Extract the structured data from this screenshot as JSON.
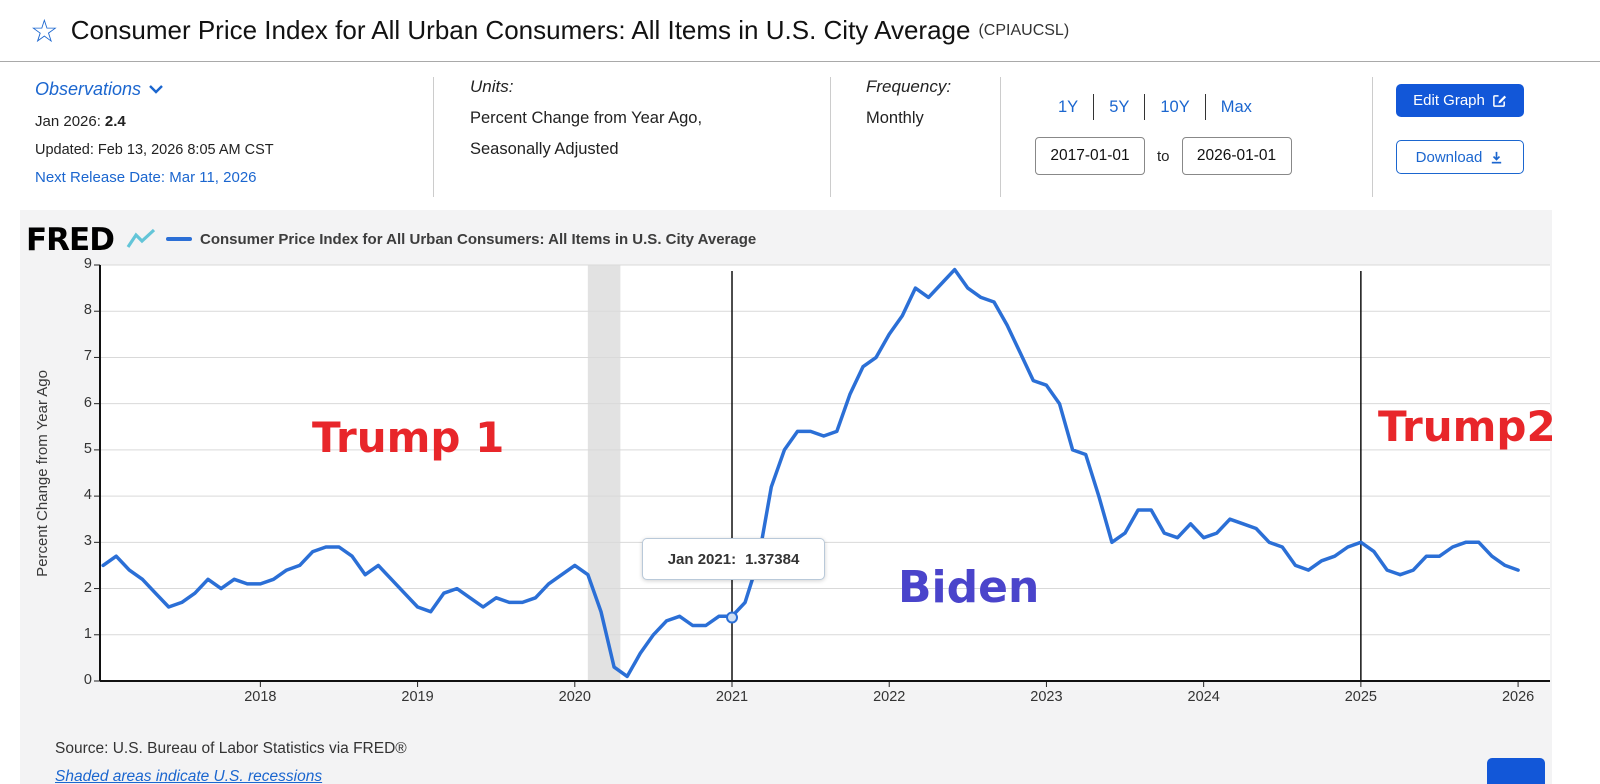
{
  "header": {
    "title": "Consumer Price Index for All Urban Consumers: All Items in U.S. City Average",
    "series_id": "(CPIAUCSL)"
  },
  "meta": {
    "observations_label": "Observations",
    "latest_label": "Jan 2026:",
    "latest_value": "2.4",
    "updated": "Updated: Feb 13, 2026 8:05 AM CST",
    "next_release": "Next Release Date: Mar 11, 2026",
    "units_label": "Units:",
    "units_line1": "Percent Change from Year Ago,",
    "units_line2": "Seasonally Adjusted",
    "frequency_label": "Frequency:",
    "frequency_value": "Monthly"
  },
  "controls": {
    "ranges": [
      "1Y",
      "5Y",
      "10Y",
      "Max"
    ],
    "date_start": "2017-01-01",
    "date_to_label": "to",
    "date_end": "2026-01-01",
    "edit_graph_label": "Edit Graph",
    "download_label": "Download"
  },
  "chart": {
    "brand": "FRED",
    "legend": "Consumer Price Index for All Urban Consumers: All Items in U.S. City Average",
    "ylabel": "Percent Change from Year Ago",
    "tooltip": {
      "label": "Jan 2021:",
      "value": "1.37384"
    },
    "annotations": [
      {
        "text": "Trump 1",
        "color": "#e8262a"
      },
      {
        "text": "Biden",
        "color": "#4a44cb"
      },
      {
        "text": "Trump2",
        "color": "#e8262a"
      }
    ],
    "source": "Source: U.S. Bureau of Labor Statistics via FRED®",
    "footnote": "Shaded areas indicate U.S. recessions"
  },
  "colors": {
    "link_blue": "#1b66cf",
    "button_blue": "#1257d8",
    "line_blue": "#2b6fd6",
    "annotation_red": "#e8262a",
    "annotation_purple": "#4a44cb",
    "recession_gray": "#e2e2e2"
  },
  "chart_data": {
    "type": "line",
    "title": "Consumer Price Index for All Urban Consumers: All Items in U.S. City Average",
    "ylabel": "Percent Change from Year Ago",
    "start_year": 2017,
    "frequency": "monthly",
    "legend_position": "top",
    "grid": true,
    "xlim": [
      2016.98,
      2026.203
    ],
    "ylim": [
      0,
      9
    ],
    "x_ticks": [
      2018,
      2019,
      2020,
      2021,
      2022,
      2023,
      2024,
      2025,
      2026
    ],
    "y_ticks": [
      0,
      1,
      2,
      3,
      4,
      5,
      6,
      7,
      8,
      9
    ],
    "line_color": "#2b6fd6",
    "values": [
      2.5,
      2.7,
      2.4,
      2.2,
      1.9,
      1.6,
      1.7,
      1.9,
      2.2,
      2.0,
      2.2,
      2.1,
      2.1,
      2.2,
      2.4,
      2.5,
      2.8,
      2.9,
      2.9,
      2.7,
      2.3,
      2.5,
      2.2,
      1.9,
      1.6,
      1.5,
      1.9,
      2.0,
      1.8,
      1.6,
      1.8,
      1.7,
      1.7,
      1.8,
      2.1,
      2.3,
      2.5,
      2.3,
      1.5,
      0.3,
      0.1,
      0.6,
      1.0,
      1.3,
      1.4,
      1.2,
      1.2,
      1.4,
      1.4,
      1.7,
      2.6,
      4.2,
      5.0,
      5.4,
      5.4,
      5.3,
      5.4,
      6.2,
      6.8,
      7.0,
      7.5,
      7.9,
      8.5,
      8.3,
      8.6,
      8.9,
      8.5,
      8.3,
      8.2,
      7.7,
      7.1,
      6.5,
      6.4,
      6.0,
      5.0,
      4.9,
      4.0,
      3.0,
      3.2,
      3.7,
      3.7,
      3.2,
      3.1,
      3.4,
      3.1,
      3.2,
      3.5,
      3.4,
      3.3,
      3.0,
      2.9,
      2.5,
      2.4,
      2.6,
      2.7,
      2.9,
      3.0,
      2.8,
      2.4,
      2.3,
      2.4,
      2.7,
      2.7,
      2.9,
      3.0,
      3.0,
      2.7,
      2.5,
      2.4
    ],
    "recession_bands": [
      {
        "start": 2020.083,
        "end": 2020.29
      }
    ],
    "vlines": [
      2021.0,
      2025.0
    ],
    "marker": {
      "x": 2021.0,
      "y": 1.37384
    }
  }
}
